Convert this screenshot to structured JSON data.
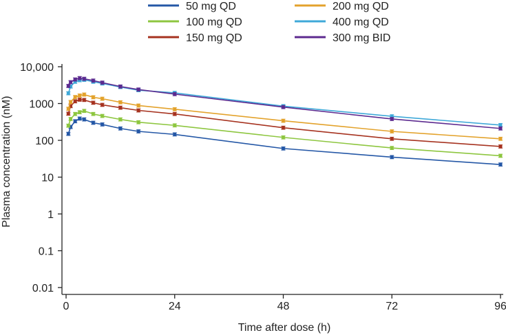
{
  "chart_data": {
    "type": "line",
    "title": "",
    "xlabel": "Time after dose (h)",
    "ylabel": "Plasma concentration (nM)",
    "yscale": "log",
    "xlim": [
      0,
      96
    ],
    "ylim": [
      0.01,
      10000
    ],
    "xticks": [
      0,
      24,
      48,
      72,
      96
    ],
    "xtick_labels": [
      "0",
      "24",
      "48",
      "72",
      "96"
    ],
    "yticks": [
      0.01,
      0.1,
      1,
      10,
      100,
      1000,
      10000
    ],
    "ytick_labels": [
      "0.01",
      "0.1",
      "1",
      "10",
      "100",
      "1000",
      "10,000"
    ],
    "legend_position": "top",
    "x": [
      0.5,
      1,
      2,
      3,
      4,
      6,
      8,
      12,
      16,
      24,
      48,
      72,
      96
    ],
    "series": [
      {
        "name": "50 mg QD",
        "color": "#2457a6",
        "values": [
          150,
          230,
          330,
          390,
          370,
          300,
          270,
          210,
          175,
          145,
          60,
          35,
          22
        ]
      },
      {
        "name": "100 mg QD",
        "color": "#8dc63f",
        "values": [
          250,
          380,
          520,
          580,
          630,
          520,
          460,
          370,
          310,
          255,
          120,
          62,
          38
        ]
      },
      {
        "name": "150 mg QD",
        "color": "#a6321f",
        "values": [
          530,
          850,
          1150,
          1270,
          1250,
          1050,
          920,
          770,
          650,
          520,
          220,
          110,
          68
        ]
      },
      {
        "name": "200 mg QD",
        "color": "#e3a22b",
        "values": [
          720,
          1100,
          1500,
          1650,
          1750,
          1480,
          1350,
          1080,
          880,
          700,
          340,
          175,
          110
        ]
      },
      {
        "name": "400 mg QD",
        "color": "#3ea8d8",
        "values": [
          1900,
          2900,
          3900,
          4300,
          4400,
          3900,
          3500,
          2800,
          2300,
          1950,
          850,
          450,
          260
        ]
      },
      {
        "name": "300 mg BID",
        "color": "#5c2a8f",
        "values": [
          3000,
          3800,
          4500,
          4900,
          4700,
          4200,
          3700,
          2900,
          2400,
          1800,
          800,
          380,
          210
        ]
      }
    ]
  }
}
